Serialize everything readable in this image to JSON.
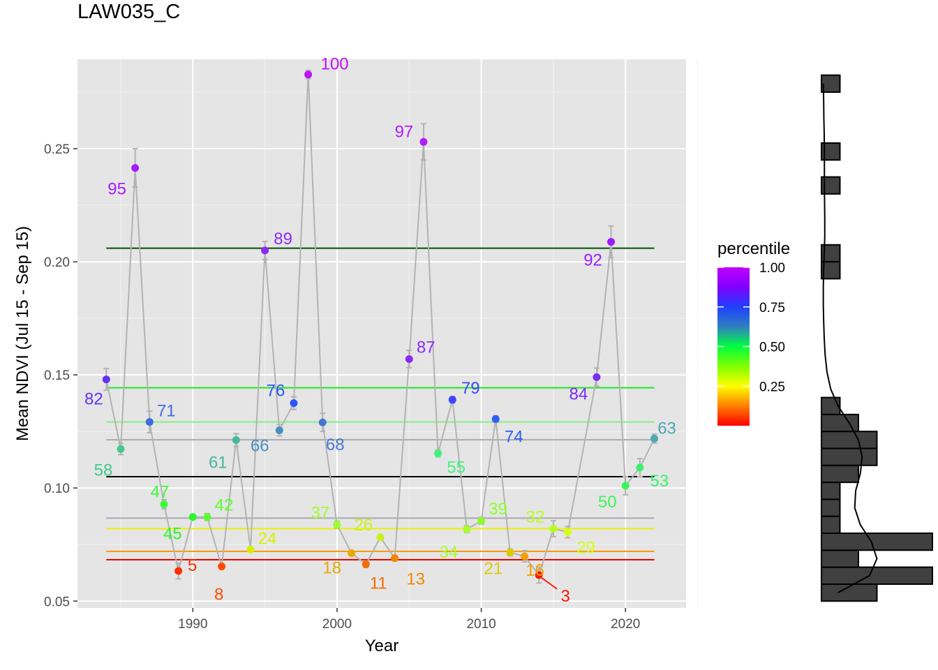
{
  "chart_data": {
    "type": "scatter",
    "title": "LAW035_C",
    "xlabel": "Year",
    "ylabel": "Mean NDVI (Jul 15 - Sep 15)",
    "xlim": [
      1982,
      2024.2
    ],
    "ylim": [
      0.047,
      0.2895
    ],
    "x_ticks": [
      1990,
      2000,
      2010,
      2020
    ],
    "y_ticks": [
      0.05,
      0.1,
      0.15,
      0.2,
      0.25
    ],
    "y_tick_labels": [
      "0.05",
      "0.10",
      "0.15",
      "0.20",
      "0.25"
    ],
    "grid": true,
    "legend": {
      "title": "percentile",
      "position": "right",
      "ticks": [
        1.0,
        0.75,
        0.5,
        0.25
      ],
      "tick_labels": [
        "1.00",
        "0.75",
        "0.50",
        "0.25"
      ],
      "colors": [
        "#ff0000",
        "#ff8000",
        "#ffff00",
        "#80ff00",
        "#00ff40",
        "#3080c0",
        "#2040ff",
        "#8000ff",
        "#c000ff"
      ]
    },
    "series": [
      {
        "points": [
          {
            "year": 1984,
            "ndvi": 0.148,
            "err": 0.0048,
            "pct": 82,
            "color": "#6433f5"
          },
          {
            "year": 1985,
            "ndvi": 0.1172,
            "err": 0.0025,
            "pct": 58,
            "color": "#44c98c"
          },
          {
            "year": 1986,
            "ndvi": 0.2415,
            "err": 0.0085,
            "pct": 95,
            "color": "#a61dfa"
          },
          {
            "year": 1987,
            "ndvi": 0.1292,
            "err": 0.0048,
            "pct": 71,
            "color": "#3d6be0"
          },
          {
            "year": 1988,
            "ndvi": 0.0928,
            "err": 0.002,
            "pct": 47,
            "color": "#3dfa3d"
          },
          {
            "year": 1989,
            "ndvi": 0.0633,
            "err": 0.0035,
            "pct": 5,
            "color": "#ff2d00"
          },
          {
            "year": 1990,
            "ndvi": 0.0872,
            "err": 0.001,
            "pct": 45,
            "color": "#2cf52c"
          },
          {
            "year": 1991,
            "ndvi": 0.0872,
            "err": 0.0015,
            "pct": 42,
            "color": "#5aff2a"
          },
          {
            "year": 1992,
            "ndvi": 0.0653,
            "err": 0.001,
            "pct": 8,
            "color": "#ff4b00"
          },
          {
            "year": 1993,
            "ndvi": 0.1212,
            "err": 0.0028,
            "pct": 61,
            "color": "#46b89a"
          },
          {
            "year": 1994,
            "ndvi": 0.0728,
            "err": 0.0008,
            "pct": 24,
            "color": "#d8ee00"
          },
          {
            "year": 1995,
            "ndvi": 0.205,
            "err": 0.004,
            "pct": 89,
            "color": "#8a2cf5"
          },
          {
            "year": 1996,
            "ndvi": 0.1255,
            "err": 0.0025,
            "pct": 66,
            "color": "#4a8ec0"
          },
          {
            "year": 1997,
            "ndvi": 0.1375,
            "err": 0.0028,
            "pct": 76,
            "color": "#2a55ff"
          },
          {
            "year": 1998,
            "ndvi": 0.2828,
            "err": 0.0018,
            "pct": 100,
            "color": "#c010ff"
          },
          {
            "year": 1999,
            "ndvi": 0.129,
            "err": 0.004,
            "pct": 68,
            "color": "#4678d2"
          },
          {
            "year": 2000,
            "ndvi": 0.0838,
            "err": 0.0015,
            "pct": 37,
            "color": "#9cff2a"
          },
          {
            "year": 2001,
            "ndvi": 0.0712,
            "err": 0.0008,
            "pct": 18,
            "color": "#e8a800"
          },
          {
            "year": 2002,
            "ndvi": 0.0663,
            "err": 0.0015,
            "pct": 11,
            "color": "#f26e00"
          },
          {
            "year": 2003,
            "ndvi": 0.0782,
            "err": 0.0008,
            "pct": 26,
            "color": "#caf21a"
          },
          {
            "year": 2004,
            "ndvi": 0.069,
            "err": 0.0008,
            "pct": 13,
            "color": "#f58400"
          },
          {
            "year": 2005,
            "ndvi": 0.157,
            "err": 0.0038,
            "pct": 87,
            "color": "#8a2cf5"
          },
          {
            "year": 2006,
            "ndvi": 0.253,
            "err": 0.008,
            "pct": 97,
            "color": "#b21cff"
          },
          {
            "year": 2007,
            "ndvi": 0.1153,
            "err": 0.0015,
            "pct": 55,
            "color": "#3df57a"
          },
          {
            "year": 2008,
            "ndvi": 0.139,
            "err": 0.0015,
            "pct": 79,
            "color": "#3a46ff"
          },
          {
            "year": 2009,
            "ndvi": 0.0818,
            "err": 0.0015,
            "pct": 34,
            "color": "#a6ff2a"
          },
          {
            "year": 2010,
            "ndvi": 0.0855,
            "err": 0.0015,
            "pct": 39,
            "color": "#8aff2a"
          },
          {
            "year": 2011,
            "ndvi": 0.1305,
            "err": 0.0015,
            "pct": 74,
            "color": "#2d5ff5"
          },
          {
            "year": 2012,
            "ndvi": 0.0715,
            "err": 0.0015,
            "pct": 21,
            "color": "#e0ca00"
          },
          {
            "year": 2013,
            "ndvi": 0.0698,
            "err": 0.0025,
            "pct": 16,
            "color": "#f0a000"
          },
          {
            "year": 2014,
            "ndvi": 0.0615,
            "err": 0.0035,
            "pct": 3,
            "color": "#ff1500"
          },
          {
            "year": 2015,
            "ndvi": 0.082,
            "err": 0.0035,
            "pct": 32,
            "color": "#b4ff1a"
          },
          {
            "year": 2016,
            "ndvi": 0.0805,
            "err": 0.0025,
            "pct": 29,
            "color": "#d6ff14"
          },
          {
            "year": 2018,
            "ndvi": 0.149,
            "err": 0.004,
            "pct": 84,
            "color": "#7a2cf5"
          },
          {
            "year": 2019,
            "ndvi": 0.2088,
            "err": 0.007,
            "pct": 92,
            "color": "#9a1cff"
          },
          {
            "year": 2020,
            "ndvi": 0.101,
            "err": 0.004,
            "pct": 50,
            "color": "#3df55a"
          },
          {
            "year": 2021,
            "ndvi": 0.109,
            "err": 0.004,
            "pct": 53,
            "color": "#3af26a"
          },
          {
            "year": 2022,
            "ndvi": 0.1218,
            "err": 0.002,
            "pct": 63,
            "color": "#4aa8b0"
          }
        ]
      }
    ],
    "reference_lines": [
      {
        "value": 0.206,
        "color": "#005000"
      },
      {
        "value": 0.1443,
        "color": "#1ee61e"
      },
      {
        "value": 0.1292,
        "color": "#82f082"
      },
      {
        "value": 0.1213,
        "color": "#aaaaaa"
      },
      {
        "value": 0.105,
        "color": "#000000"
      },
      {
        "value": 0.0867,
        "color": "#aaaaaa"
      },
      {
        "value": 0.082,
        "color": "#f0f000"
      },
      {
        "value": 0.072,
        "color": "#ff9900"
      },
      {
        "value": 0.0683,
        "color": "#f00000"
      }
    ],
    "histogram": {
      "bins": [
        0.05,
        0.0575,
        0.065,
        0.0725,
        0.08,
        0.0875,
        0.095,
        0.1025,
        0.11,
        0.1175,
        0.125,
        0.1325,
        0.14,
        0.1475,
        0.155,
        0.1625,
        0.17,
        0.1775,
        0.185,
        0.1925,
        0.2,
        0.2075,
        0.215,
        0.2225,
        0.23,
        0.2375,
        0.245,
        0.2525,
        0.26,
        0.2675,
        0.275,
        0.2825
      ],
      "counts": [
        3,
        6,
        2,
        6,
        1,
        1,
        1,
        2,
        3,
        3,
        2,
        1,
        0,
        0,
        0,
        0,
        0,
        0,
        0,
        1,
        1,
        0,
        0,
        0,
        1,
        0,
        1,
        0,
        0,
        0,
        1
      ],
      "density": [
        0.9,
        2.6,
        3.0,
        2.7,
        2.1,
        1.8,
        1.85,
        2.1,
        2.2,
        2.0,
        1.5,
        0.9,
        0.5,
        0.3,
        0.2,
        0.15,
        0.12,
        0.1,
        0.1,
        0.12,
        0.15,
        0.18,
        0.18,
        0.17,
        0.16,
        0.16,
        0.16,
        0.15,
        0.13,
        0.12,
        0.1
      ]
    }
  }
}
